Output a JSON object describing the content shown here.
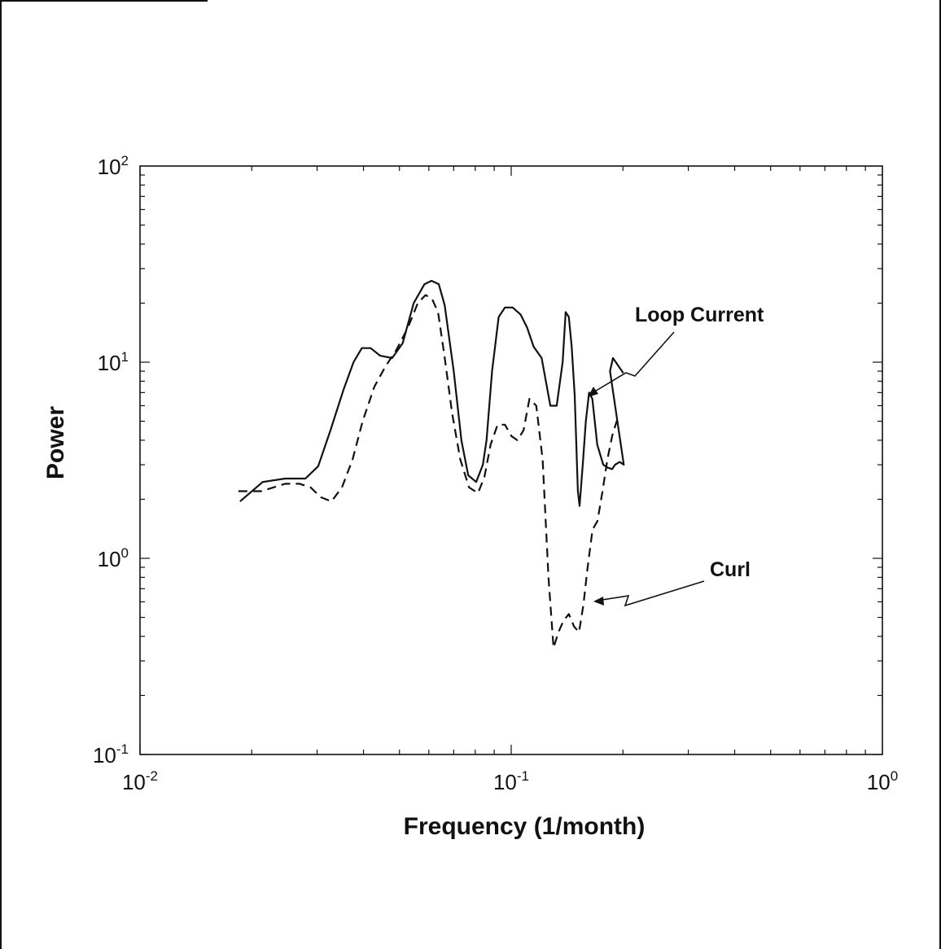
{
  "chart_data": {
    "type": "line",
    "xlabel": "Frequency (1/month)",
    "ylabel": "Power",
    "xscale": "log",
    "yscale": "log",
    "xlim": [
      0.01,
      1
    ],
    "ylim": [
      0.1,
      100
    ],
    "grid": false,
    "legend": "none",
    "x_ticks": [
      {
        "base": "10",
        "exp": "-2",
        "value": 0.01
      },
      {
        "base": "10",
        "exp": "-1",
        "value": 0.1
      },
      {
        "base": "10",
        "exp": "0",
        "value": 1
      }
    ],
    "y_ticks": [
      {
        "base": "10",
        "exp": "-1",
        "value": 0.1
      },
      {
        "base": "10",
        "exp": "0",
        "value": 1
      },
      {
        "base": "10",
        "exp": "1",
        "value": 10
      },
      {
        "base": "10",
        "exp": "2",
        "value": 100
      }
    ],
    "series": [
      {
        "name": "Loop Current",
        "style": "solid",
        "color": "#111111",
        "x": [
          0.0186,
          0.0214,
          0.0246,
          0.0279,
          0.0302,
          0.0326,
          0.0353,
          0.0376,
          0.0396,
          0.0418,
          0.0443,
          0.0478,
          0.051,
          0.0546,
          0.0584,
          0.061,
          0.0638,
          0.0662,
          0.07,
          0.0734,
          0.0766,
          0.0805,
          0.0839,
          0.0858,
          0.0888,
          0.0925,
          0.0962,
          0.1009,
          0.106,
          0.1104,
          0.1149,
          0.1208,
          0.1275,
          0.1326,
          0.1376,
          0.1402,
          0.143,
          0.1455,
          0.1483,
          0.1512,
          0.1528,
          0.1559,
          0.1589,
          0.1621,
          0.1654,
          0.1705,
          0.177,
          0.182,
          0.187,
          0.1905,
          0.196,
          0.201,
          0.1846,
          0.188,
          0.2004
        ],
        "y": [
          1.95,
          2.45,
          2.55,
          2.55,
          2.95,
          4.5,
          7.2,
          10.0,
          11.8,
          11.8,
          10.8,
          10.5,
          12.5,
          20.0,
          25.0,
          26.0,
          25.0,
          19.5,
          9.0,
          4.0,
          2.65,
          2.45,
          3.0,
          4.0,
          9.0,
          17.0,
          19.0,
          19.0,
          17.5,
          15.0,
          12.0,
          10.5,
          6.0,
          6.0,
          10.0,
          18.0,
          17.0,
          12.0,
          6.8,
          2.2,
          1.85,
          3.0,
          5.0,
          7.0,
          6.5,
          3.8,
          3.0,
          2.9,
          2.85,
          3.0,
          3.1,
          3.0,
          9.0,
          10.5,
          8.8
        ]
      },
      {
        "name": "Curl",
        "style": "dashed",
        "color": "#111111",
        "x": [
          0.0184,
          0.0212,
          0.0246,
          0.0269,
          0.0288,
          0.0307,
          0.0328,
          0.035,
          0.0374,
          0.0398,
          0.0428,
          0.0458,
          0.049,
          0.0527,
          0.056,
          0.0588,
          0.0612,
          0.0635,
          0.066,
          0.0693,
          0.0729,
          0.077,
          0.0814,
          0.0847,
          0.088,
          0.0919,
          0.0962,
          0.1001,
          0.1039,
          0.108,
          0.112,
          0.1168,
          0.1215,
          0.126,
          0.13,
          0.134,
          0.1383,
          0.143,
          0.1476,
          0.1523,
          0.1565,
          0.1607,
          0.1656,
          0.1708,
          0.1762,
          0.1816,
          0.187,
          0.1924,
          0.1968
        ],
        "y": [
          2.2,
          2.2,
          2.4,
          2.4,
          2.3,
          2.05,
          1.95,
          2.3,
          3.2,
          5.0,
          7.5,
          9.5,
          11.5,
          15.0,
          20.0,
          22.0,
          21.0,
          18.0,
          11.0,
          5.5,
          3.2,
          2.3,
          2.15,
          2.6,
          3.8,
          4.8,
          4.8,
          4.2,
          4.0,
          4.5,
          6.5,
          6.0,
          3.2,
          0.8,
          0.35,
          0.42,
          0.48,
          0.52,
          0.45,
          0.42,
          0.58,
          0.9,
          1.4,
          1.55,
          2.2,
          3.2,
          4.2,
          5.0,
          4.8
        ]
      }
    ],
    "annotations": [
      {
        "text": "Loop Current",
        "series": "Loop Current"
      },
      {
        "text": "Curl",
        "series": "Curl"
      }
    ]
  }
}
